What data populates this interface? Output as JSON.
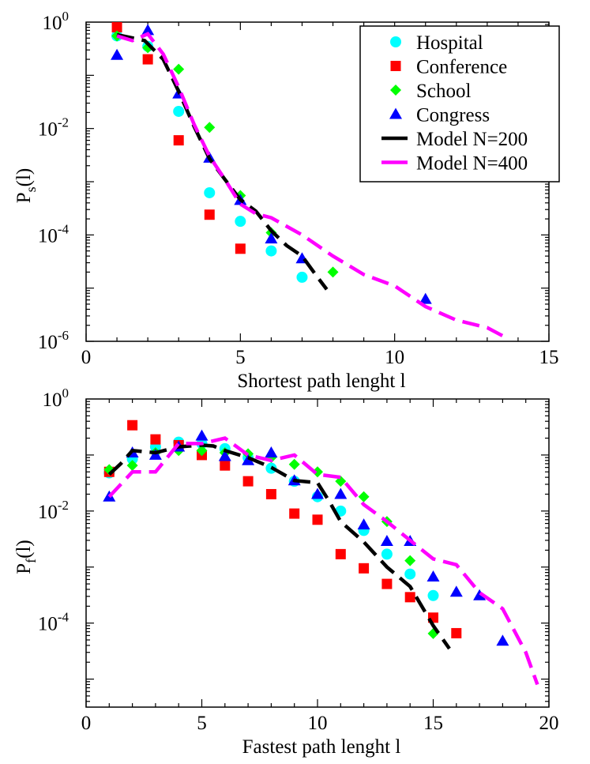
{
  "chart_data": [
    {
      "type": "scatter",
      "panel": "top",
      "yscale": "log",
      "xlabel": "Shortest path lenght l",
      "ylabel": {
        "main": "P",
        "sub": "s",
        "tail": "(l)"
      },
      "xlim": [
        0,
        15
      ],
      "ylim_log10": [
        -6,
        0
      ],
      "xticks": [
        0,
        5,
        10,
        15
      ],
      "xtick_labels": [
        "0",
        "5",
        "10",
        "15"
      ],
      "yticks_log10": [
        0,
        -2,
        -4,
        -6
      ],
      "ytick_labels": [
        {
          "base": "10",
          "exp": "0"
        },
        {
          "base": "10",
          "exp": "-2"
        },
        {
          "base": "10",
          "exp": "-4"
        },
        {
          "base": "10",
          "exp": "-6"
        }
      ],
      "legend_position": "top-right",
      "legend": [
        {
          "name": "Hospital",
          "marker": "circle"
        },
        {
          "name": "Conference",
          "marker": "square"
        },
        {
          "name": "School",
          "marker": "diamond"
        },
        {
          "name": "Congress",
          "marker": "triangle"
        },
        {
          "name": "Model N=200",
          "marker": "line-black"
        },
        {
          "name": "Model N=400",
          "marker": "line-magenta"
        }
      ],
      "series": [
        {
          "name": "Hospital",
          "marker": "circle",
          "color": "#00ffff",
          "x": [
            1,
            2,
            3,
            4,
            5,
            6,
            7
          ],
          "y": [
            0.55,
            0.35,
            0.021,
            0.00062,
            0.00018,
            5e-05,
            1.6e-05
          ]
        },
        {
          "name": "Conference",
          "marker": "square",
          "color": "#ff0000",
          "x": [
            1,
            2,
            3,
            4,
            5
          ],
          "y": [
            0.8,
            0.2,
            0.006,
            0.00024,
            5.5e-05
          ]
        },
        {
          "name": "School",
          "marker": "diamond",
          "color": "#00ff00",
          "x": [
            1,
            2,
            3,
            4,
            5,
            6,
            8
          ],
          "y": [
            0.55,
            0.33,
            0.13,
            0.0105,
            0.00055,
            0.00011,
            2e-05
          ]
        },
        {
          "name": "Congress",
          "marker": "triangle",
          "color": "#0000ff",
          "x": [
            1,
            2,
            3,
            4,
            5,
            6,
            7,
            11
          ],
          "y": [
            0.24,
            0.7,
            0.045,
            0.0028,
            0.00045,
            8.5e-05,
            3.6e-05,
            6.2e-06
          ]
        },
        {
          "name": "Model N=200",
          "marker": "line",
          "color": "#000000",
          "dash": "dashed",
          "x": [
            1,
            1.9,
            2.5,
            3,
            3.5,
            4,
            4.5,
            5,
            5.5,
            6,
            6.5,
            7,
            7.5,
            7.8
          ],
          "y": [
            0.58,
            0.45,
            0.2,
            0.05,
            0.011,
            0.0027,
            0.0011,
            0.00046,
            0.00028,
            0.00012,
            6.3e-05,
            4e-05,
            1.6e-05,
            9.5e-06
          ]
        },
        {
          "name": "Model N=400",
          "marker": "line",
          "color": "#ff00ff",
          "dash": "dashed",
          "x": [
            1,
            1.5,
            2,
            2.5,
            3,
            3.5,
            4,
            4.5,
            5,
            5.5,
            6,
            7,
            8,
            9,
            10,
            11,
            12,
            13,
            13.7
          ],
          "y": [
            0.55,
            0.45,
            0.6,
            0.25,
            0.06,
            0.012,
            0.003,
            0.0011,
            0.00038,
            0.00025,
            0.00021,
            0.0001,
            4e-05,
            1.8e-05,
            1.1e-05,
            4.5e-06,
            2.5e-06,
            1.8e-06,
            1.1e-06
          ]
        }
      ]
    },
    {
      "type": "scatter",
      "panel": "bottom",
      "yscale": "log",
      "xlabel": "Fastest path lenght l",
      "ylabel": {
        "main": "P",
        "sub": "f",
        "tail": "(l)"
      },
      "xlim": [
        0,
        20
      ],
      "ylim_log10": [
        -5.5,
        0
      ],
      "xticks": [
        0,
        5,
        10,
        15,
        20
      ],
      "xtick_labels": [
        "0",
        "5",
        "10",
        "15",
        "20"
      ],
      "yticks_log10": [
        0,
        -2,
        -4
      ],
      "ytick_labels": [
        {
          "base": "10",
          "exp": "0"
        },
        {
          "base": "10",
          "exp": "-2"
        },
        {
          "base": "10",
          "exp": "-4"
        }
      ],
      "series": [
        {
          "name": "Hospital",
          "marker": "circle",
          "color": "#00ffff",
          "x": [
            1,
            2,
            3,
            4,
            5,
            6,
            7,
            8,
            9,
            10,
            11,
            12,
            13,
            14,
            15
          ],
          "y": [
            0.048,
            0.085,
            0.14,
            0.17,
            0.16,
            0.13,
            0.09,
            0.058,
            0.034,
            0.018,
            0.01,
            0.0045,
            0.0017,
            0.00075,
            0.00031
          ]
        },
        {
          "name": "Conference",
          "marker": "square",
          "color": "#ff0000",
          "x": [
            1,
            2,
            3,
            4,
            5,
            6,
            7,
            8,
            9,
            10,
            11,
            12,
            13,
            14,
            15,
            16
          ],
          "y": [
            0.05,
            0.34,
            0.19,
            0.15,
            0.1,
            0.065,
            0.034,
            0.02,
            0.009,
            0.007,
            0.0017,
            0.00095,
            0.0005,
            0.00029,
            0.000125,
            6.6e-05
          ]
        },
        {
          "name": "School",
          "marker": "diamond",
          "color": "#00ff00",
          "x": [
            1,
            2,
            3,
            4,
            5,
            6,
            7,
            8,
            9,
            10,
            11,
            12,
            13,
            14,
            15
          ],
          "y": [
            0.055,
            0.065,
            0.11,
            0.12,
            0.12,
            0.11,
            0.105,
            0.09,
            0.068,
            0.05,
            0.034,
            0.018,
            0.0065,
            0.0013,
            6.5e-05
          ]
        },
        {
          "name": "Congress",
          "marker": "triangle",
          "color": "#0000ff",
          "x": [
            1,
            2,
            3,
            4,
            5,
            6,
            7,
            8,
            9,
            10,
            11,
            12,
            13,
            14,
            15,
            16,
            17,
            18
          ],
          "y": [
            0.018,
            0.11,
            0.1,
            0.14,
            0.22,
            0.095,
            0.08,
            0.11,
            0.035,
            0.02,
            0.02,
            0.0057,
            0.0029,
            0.0029,
            0.00067,
            0.00036,
            0.00031,
            4.8e-05
          ]
        },
        {
          "name": "Model N=200",
          "marker": "line",
          "color": "#000000",
          "dash": "dashed",
          "x": [
            1,
            1.5,
            2,
            3,
            4,
            5,
            5.5,
            6,
            7,
            8,
            9,
            10,
            10.5,
            11,
            12,
            13,
            14,
            15,
            15.7
          ],
          "y": [
            0.045,
            0.07,
            0.12,
            0.11,
            0.14,
            0.15,
            0.145,
            0.12,
            0.09,
            0.06,
            0.035,
            0.032,
            0.015,
            0.0065,
            0.0028,
            0.001,
            0.00045,
            9e-05,
            3.5e-05
          ]
        },
        {
          "name": "Model N=400",
          "marker": "line",
          "color": "#ff00ff",
          "dash": "dashed",
          "x": [
            1,
            2,
            3,
            4,
            5,
            6,
            7,
            8,
            9,
            10,
            11,
            12,
            13,
            14,
            15,
            16,
            17,
            18,
            19,
            19.5
          ],
          "y": [
            0.018,
            0.05,
            0.05,
            0.16,
            0.16,
            0.2,
            0.1,
            0.08,
            0.1,
            0.045,
            0.04,
            0.013,
            0.0065,
            0.003,
            0.0014,
            0.0011,
            0.00035,
            0.00018,
            3e-05,
            8e-06
          ]
        }
      ]
    }
  ]
}
